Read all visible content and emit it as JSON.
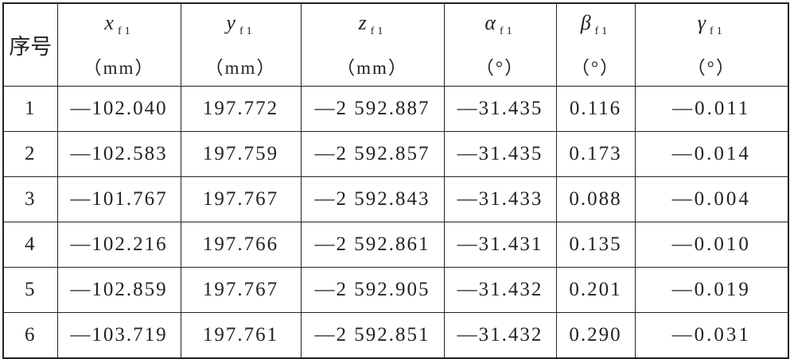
{
  "table": {
    "header": [
      {
        "label": "序号"
      },
      {
        "symbol": "x",
        "sub": "f1",
        "unit": "（mm）"
      },
      {
        "symbol": "y",
        "sub": "f1",
        "unit": "（mm）"
      },
      {
        "symbol": "z",
        "sub": "f1",
        "unit": "（mm）"
      },
      {
        "symbol": "α",
        "sub": "f1",
        "unit": "（°）"
      },
      {
        "symbol": "β",
        "sub": "f1",
        "unit": "（°）"
      },
      {
        "symbol": "γ",
        "sub": "f1",
        "unit": "（°）"
      }
    ],
    "rows": [
      [
        "1",
        "—102.040",
        "197.772",
        "—2 592.887",
        "—31.435",
        "0.116",
        "—0.011"
      ],
      [
        "2",
        "—102.583",
        "197.759",
        "—2 592.857",
        "—31.435",
        "0.173",
        "—0.014"
      ],
      [
        "3",
        "—101.767",
        "197.767",
        "—2 592.843",
        "—31.433",
        "0.088",
        "—0.004"
      ],
      [
        "4",
        "—102.216",
        "197.766",
        "—2 592.861",
        "—31.431",
        "0.135",
        "—0.010"
      ],
      [
        "5",
        "—102.859",
        "197.767",
        "—2 592.905",
        "—31.432",
        "0.201",
        "—0.019"
      ],
      [
        "6",
        "—103.719",
        "197.761",
        "—2 592.851",
        "—31.432",
        "0.290",
        "—0.031"
      ]
    ]
  }
}
